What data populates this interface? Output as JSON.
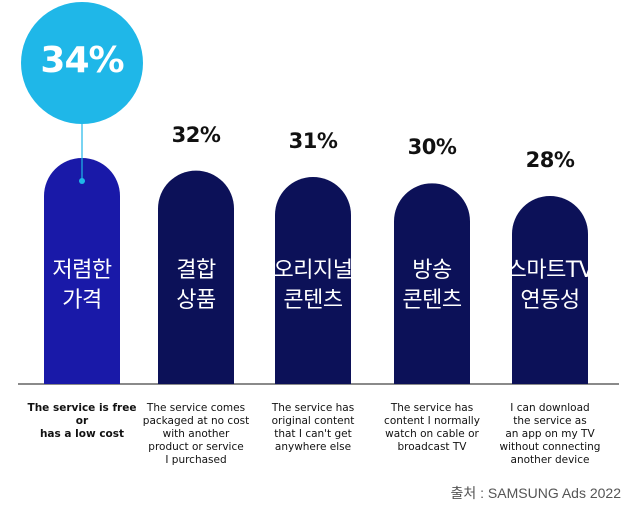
{
  "chart_data": {
    "type": "bar",
    "categories": [
      "저렴한\n가격",
      "결합\n상품",
      "오리지널\n콘텐츠",
      "방송\n콘텐츠",
      "스마트TV\n연동성"
    ],
    "values": [
      34,
      32,
      31,
      30,
      28
    ],
    "value_labels": [
      "34%",
      "32%",
      "31%",
      "30%",
      "28%"
    ],
    "descriptions": [
      "The service is free or\nhas a low cost",
      "The service comes\npackaged at no cost\nwith another\nproduct or service\nI purchased",
      "The service has\noriginal content\nthat I can't get\nanywhere else",
      "The service has\ncontent I normally\nwatch on cable or\nbroadcast TV",
      "I can download\nthe service as\nan app on my TV\nwithout connecting\nanother device"
    ],
    "highlight_index": 0,
    "unit": "%"
  },
  "source": "출처 : SAMSUNG Ads 2022",
  "colors": {
    "bar_highlight": "#1919a8",
    "bar": "#0c1158",
    "bubble": "#1fb7e8",
    "baseline": "#444444"
  }
}
